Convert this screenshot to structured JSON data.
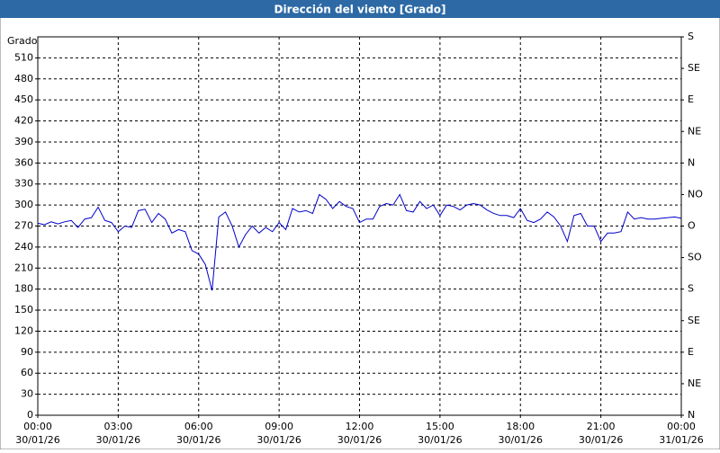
{
  "chart_data": {
    "type": "line",
    "title": "Dirección del viento [Grado]",
    "ylabel": "Grado",
    "xlim": [
      0,
      24
    ],
    "ylim": [
      0,
      540
    ],
    "y2lim": [
      0,
      540
    ],
    "grid": true,
    "xticks": [
      {
        "value": 0,
        "label": "00:00"
      },
      {
        "value": 3,
        "label": "03:00"
      },
      {
        "value": 6,
        "label": "06:00"
      },
      {
        "value": 9,
        "label": "09:00"
      },
      {
        "value": 12,
        "label": "12:00"
      },
      {
        "value": 15,
        "label": "15:00"
      },
      {
        "value": 18,
        "label": "18:00"
      },
      {
        "value": 21,
        "label": "21:00"
      },
      {
        "value": 24,
        "label": "00:00"
      }
    ],
    "xtick_dates": [
      "30/01/26",
      "30/01/26",
      "30/01/26",
      "30/01/26",
      "30/01/26",
      "30/01/26",
      "30/01/26",
      "30/01/26",
      "31/01/26"
    ],
    "yticks": [
      0,
      30,
      60,
      90,
      120,
      150,
      180,
      210,
      240,
      270,
      300,
      330,
      360,
      390,
      420,
      450,
      480,
      510
    ],
    "y2ticks": [
      {
        "value": 0,
        "label": "N"
      },
      {
        "value": 45,
        "label": "NE"
      },
      {
        "value": 90,
        "label": "E"
      },
      {
        "value": 135,
        "label": "SE"
      },
      {
        "value": 180,
        "label": "S"
      },
      {
        "value": 225,
        "label": "SO"
      },
      {
        "value": 270,
        "label": "O"
      },
      {
        "value": 315,
        "label": "NO"
      },
      {
        "value": 360,
        "label": "N"
      },
      {
        "value": 405,
        "label": "NE"
      },
      {
        "value": 450,
        "label": "E"
      },
      {
        "value": 495,
        "label": "SE"
      },
      {
        "value": 540,
        "label": "S"
      }
    ],
    "x": [
      0,
      0.25,
      0.5,
      0.75,
      1,
      1.25,
      1.5,
      1.75,
      2,
      2.25,
      2.5,
      2.75,
      3,
      3.25,
      3.5,
      3.75,
      4,
      4.25,
      4.5,
      4.75,
      5,
      5.25,
      5.5,
      5.75,
      6,
      6.25,
      6.5,
      6.75,
      7,
      7.25,
      7.5,
      7.75,
      8,
      8.25,
      8.5,
      8.75,
      9,
      9.25,
      9.5,
      9.75,
      10,
      10.25,
      10.5,
      10.75,
      11,
      11.25,
      11.5,
      11.75,
      12,
      12.25,
      12.5,
      12.75,
      13,
      13.25,
      13.5,
      13.75,
      14,
      14.25,
      14.5,
      14.75,
      15,
      15.25,
      15.5,
      15.75,
      16,
      16.25,
      16.5,
      16.75,
      17,
      17.25,
      17.5,
      17.75,
      18,
      18.25,
      18.5,
      18.75,
      19,
      19.25,
      19.5,
      19.75,
      20,
      20.25,
      20.5,
      20.75,
      21,
      21.25,
      21.5,
      21.75,
      22,
      22.25,
      22.5,
      22.75,
      23,
      23.25,
      23.5,
      23.75,
      24
    ],
    "series": [
      {
        "name": "Dirección del viento",
        "color": "#0000c8",
        "values": [
          274,
          272,
          276,
          273,
          276,
          278,
          268,
          280,
          282,
          297,
          278,
          275,
          262,
          270,
          268,
          292,
          294,
          275,
          288,
          280,
          260,
          265,
          262,
          235,
          230,
          215,
          178,
          283,
          290,
          270,
          240,
          258,
          270,
          260,
          268,
          262,
          275,
          265,
          295,
          290,
          292,
          288,
          315,
          308,
          295,
          305,
          298,
          295,
          275,
          280,
          280,
          298,
          302,
          300,
          315,
          292,
          290,
          305,
          295,
          300,
          285,
          300,
          298,
          293,
          300,
          302,
          300,
          293,
          288,
          285,
          285,
          282,
          295,
          278,
          275,
          280,
          290,
          283,
          270,
          248,
          285,
          288,
          270,
          270,
          248,
          260,
          260,
          262,
          290,
          280,
          282,
          280,
          280,
          281,
          282,
          283,
          281
        ]
      }
    ]
  }
}
